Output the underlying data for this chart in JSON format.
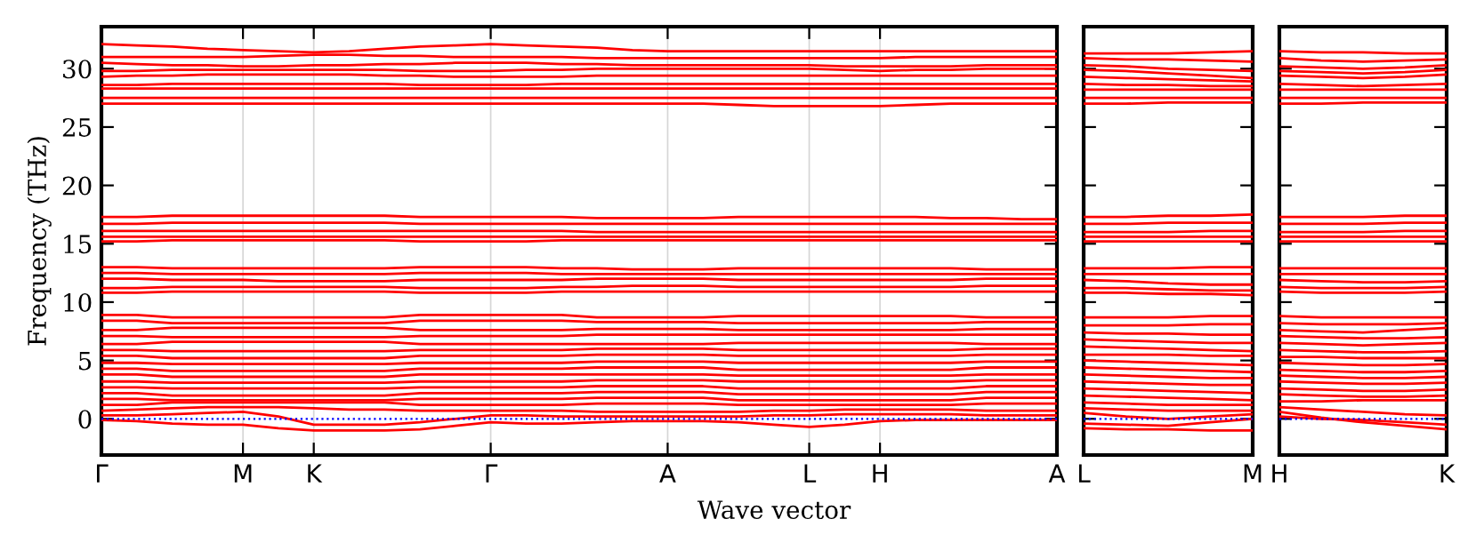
{
  "chart_data": [
    {
      "type": "line",
      "ylabel": "Frequency (THz)",
      "xlabel": "Wave vector",
      "categories": [
        "Γ",
        null,
        null,
        null,
        "M",
        null,
        "K",
        null,
        null,
        null,
        null,
        "Γ",
        null,
        null,
        null,
        null,
        "A",
        null,
        null,
        null,
        "L",
        null,
        "H",
        null,
        null,
        null,
        null,
        "A"
      ],
      "ylim": [
        -3.1,
        33.6
      ],
      "yticks": [
        0,
        5,
        10,
        15,
        20,
        25,
        30
      ],
      "grid": "x",
      "marker": "none",
      "line_style": "solid",
      "ref_lines": [
        {
          "axis": "y",
          "value": 0,
          "color": "#0000ff",
          "line_style": "dotted"
        }
      ],
      "series": [
        {
          "color": "#ff0000",
          "values": [
            32.1,
            32.0,
            31.9,
            31.7,
            31.6,
            31.5,
            31.4,
            31.5,
            31.7,
            31.9,
            32.0,
            32.1,
            32.0,
            31.9,
            31.8,
            31.6,
            31.5,
            31.5,
            31.5,
            31.5,
            31.5,
            31.5,
            31.5,
            31.5,
            31.5,
            31.5,
            31.5,
            31.5
          ]
        },
        {
          "color": "#ff0000",
          "values": [
            31.0,
            31.0,
            31.0,
            31.0,
            31.0,
            31.1,
            31.2,
            31.2,
            31.1,
            31.1,
            31.0,
            31.0,
            31.0,
            31.0,
            30.9,
            30.9,
            30.9,
            30.9,
            30.9,
            30.9,
            30.9,
            30.9,
            30.9,
            31.0,
            31.0,
            31.0,
            31.0,
            31.0
          ]
        },
        {
          "color": "#ff0000",
          "values": [
            30.5,
            30.4,
            30.3,
            30.3,
            30.2,
            30.2,
            30.3,
            30.3,
            30.4,
            30.4,
            30.5,
            30.5,
            30.5,
            30.4,
            30.4,
            30.3,
            30.3,
            30.3,
            30.3,
            30.3,
            30.3,
            30.2,
            30.2,
            30.2,
            30.2,
            30.3,
            30.3,
            30.3
          ]
        },
        {
          "color": "#ff0000",
          "values": [
            29.8,
            29.8,
            29.9,
            29.9,
            29.9,
            29.9,
            29.9,
            29.9,
            29.9,
            29.8,
            29.8,
            29.8,
            29.9,
            29.9,
            30.0,
            30.0,
            30.0,
            30.0,
            30.0,
            30.0,
            30.0,
            29.9,
            29.8,
            29.9,
            29.9,
            30.0,
            30.0,
            30.0
          ]
        },
        {
          "color": "#ff0000",
          "values": [
            29.3,
            29.4,
            29.4,
            29.5,
            29.5,
            29.5,
            29.5,
            29.5,
            29.4,
            29.4,
            29.3,
            29.3,
            29.3,
            29.3,
            29.4,
            29.4,
            29.4,
            29.4,
            29.4,
            29.4,
            29.4,
            29.4,
            29.4,
            29.4,
            29.4,
            29.4,
            29.4,
            29.4
          ]
        },
        {
          "color": "#ff0000",
          "values": [
            28.6,
            28.6,
            28.7,
            28.7,
            28.7,
            28.7,
            28.7,
            28.7,
            28.7,
            28.6,
            28.6,
            28.6,
            28.6,
            28.7,
            28.7,
            28.7,
            28.7,
            28.7,
            28.7,
            28.7,
            28.7,
            28.7,
            28.7,
            28.7,
            28.7,
            28.7,
            28.7,
            28.7
          ]
        },
        {
          "color": "#ff0000",
          "values": [
            28.3,
            28.3,
            28.3,
            28.3,
            28.3,
            28.3,
            28.3,
            28.3,
            28.3,
            28.3,
            28.3,
            28.3,
            28.3,
            28.3,
            28.3,
            28.3,
            28.3,
            28.3,
            28.3,
            28.3,
            28.3,
            28.3,
            28.3,
            28.3,
            28.3,
            28.3,
            28.3,
            28.3
          ]
        },
        {
          "color": "#ff0000",
          "values": [
            27.5,
            27.5,
            27.5,
            27.5,
            27.5,
            27.5,
            27.5,
            27.5,
            27.5,
            27.5,
            27.5,
            27.5,
            27.5,
            27.5,
            27.5,
            27.5,
            27.5,
            27.5,
            27.5,
            27.5,
            27.5,
            27.5,
            27.5,
            27.5,
            27.5,
            27.5,
            27.5,
            27.5
          ]
        },
        {
          "color": "#ff0000",
          "values": [
            27.0,
            27.0,
            27.0,
            27.0,
            27.0,
            27.0,
            27.0,
            27.0,
            27.0,
            27.0,
            27.0,
            27.0,
            27.0,
            27.0,
            27.0,
            27.0,
            27.0,
            27.0,
            26.9,
            26.8,
            26.8,
            26.8,
            26.8,
            26.9,
            27.0,
            27.0,
            27.0,
            27.0
          ]
        },
        {
          "color": "#ff0000",
          "values": [
            17.3,
            17.3,
            17.4,
            17.4,
            17.4,
            17.4,
            17.4,
            17.4,
            17.4,
            17.3,
            17.3,
            17.3,
            17.3,
            17.3,
            17.2,
            17.2,
            17.2,
            17.2,
            17.3,
            17.3,
            17.3,
            17.3,
            17.3,
            17.3,
            17.2,
            17.2,
            17.1,
            17.1
          ]
        },
        {
          "color": "#ff0000",
          "values": [
            16.7,
            16.7,
            16.8,
            16.8,
            16.8,
            16.8,
            16.8,
            16.8,
            16.8,
            16.7,
            16.7,
            16.7,
            16.7,
            16.7,
            16.7,
            16.7,
            16.7,
            16.7,
            16.7,
            16.7,
            16.7,
            16.7,
            16.7,
            16.7,
            16.7,
            16.7,
            16.7,
            16.7
          ]
        },
        {
          "color": "#ff0000",
          "values": [
            16.1,
            16.1,
            16.1,
            16.1,
            16.1,
            16.1,
            16.1,
            16.1,
            16.1,
            16.1,
            16.1,
            16.1,
            16.1,
            16.1,
            16.0,
            16.0,
            16.0,
            16.0,
            16.0,
            16.0,
            16.0,
            16.0,
            16.0,
            16.0,
            16.0,
            16.0,
            16.0,
            16.0
          ]
        },
        {
          "color": "#ff0000",
          "values": [
            15.6,
            15.6,
            15.6,
            15.6,
            15.6,
            15.6,
            15.6,
            15.6,
            15.6,
            15.6,
            15.6,
            15.6,
            15.6,
            15.6,
            15.6,
            15.6,
            15.6,
            15.6,
            15.6,
            15.6,
            15.6,
            15.6,
            15.6,
            15.6,
            15.6,
            15.6,
            15.6,
            15.6
          ]
        },
        {
          "color": "#ff0000",
          "values": [
            15.2,
            15.2,
            15.3,
            15.3,
            15.3,
            15.3,
            15.3,
            15.3,
            15.3,
            15.2,
            15.2,
            15.2,
            15.2,
            15.3,
            15.3,
            15.3,
            15.3,
            15.3,
            15.3,
            15.3,
            15.3,
            15.3,
            15.3,
            15.3,
            15.3,
            15.3,
            15.3,
            15.3
          ]
        },
        {
          "color": "#ff0000",
          "values": [
            13.0,
            13.0,
            12.9,
            12.9,
            12.9,
            12.9,
            12.9,
            12.9,
            12.9,
            13.0,
            13.0,
            13.0,
            13.0,
            12.9,
            12.9,
            12.8,
            12.8,
            12.8,
            12.9,
            12.9,
            12.9,
            12.9,
            12.9,
            12.9,
            12.9,
            12.8,
            12.8,
            12.8
          ]
        },
        {
          "color": "#ff0000",
          "values": [
            12.5,
            12.5,
            12.4,
            12.4,
            12.4,
            12.4,
            12.4,
            12.4,
            12.4,
            12.5,
            12.5,
            12.5,
            12.5,
            12.4,
            12.4,
            12.4,
            12.4,
            12.4,
            12.4,
            12.4,
            12.4,
            12.4,
            12.4,
            12.4,
            12.4,
            12.4,
            12.4,
            12.4
          ]
        },
        {
          "color": "#ff0000",
          "values": [
            12.0,
            12.0,
            11.9,
            11.9,
            11.9,
            11.8,
            11.8,
            11.8,
            11.8,
            11.9,
            11.9,
            11.9,
            11.9,
            11.9,
            12.0,
            12.0,
            12.0,
            12.0,
            11.9,
            11.9,
            11.9,
            11.9,
            11.9,
            11.9,
            11.9,
            12.0,
            12.0,
            12.0
          ]
        },
        {
          "color": "#ff0000",
          "values": [
            11.2,
            11.2,
            11.3,
            11.3,
            11.3,
            11.3,
            11.3,
            11.3,
            11.3,
            11.2,
            11.2,
            11.2,
            11.2,
            11.3,
            11.3,
            11.4,
            11.4,
            11.4,
            11.3,
            11.3,
            11.3,
            11.3,
            11.3,
            11.3,
            11.3,
            11.4,
            11.4,
            11.4
          ]
        },
        {
          "color": "#ff0000",
          "values": [
            10.8,
            10.8,
            10.9,
            10.9,
            10.9,
            10.9,
            10.9,
            10.9,
            10.9,
            10.8,
            10.8,
            10.8,
            10.8,
            10.9,
            10.9,
            10.9,
            10.9,
            10.9,
            10.9,
            10.9,
            10.9,
            10.9,
            10.9,
            10.9,
            10.9,
            10.9,
            10.9,
            10.9
          ]
        },
        {
          "color": "#ff0000",
          "values": [
            8.9,
            8.9,
            8.7,
            8.7,
            8.7,
            8.7,
            8.7,
            8.7,
            8.7,
            8.9,
            8.9,
            8.9,
            8.9,
            8.9,
            8.7,
            8.7,
            8.7,
            8.7,
            8.8,
            8.8,
            8.8,
            8.8,
            8.8,
            8.8,
            8.8,
            8.7,
            8.7,
            8.7
          ]
        },
        {
          "color": "#ff0000",
          "values": [
            8.4,
            8.4,
            8.2,
            8.2,
            8.2,
            8.2,
            8.2,
            8.2,
            8.2,
            8.4,
            8.4,
            8.4,
            8.4,
            8.4,
            8.3,
            8.3,
            8.3,
            8.3,
            8.2,
            8.2,
            8.2,
            8.2,
            8.2,
            8.2,
            8.2,
            8.3,
            8.3,
            8.3
          ]
        },
        {
          "color": "#ff0000",
          "values": [
            7.6,
            7.6,
            7.8,
            7.8,
            7.8,
            7.8,
            7.8,
            7.8,
            7.8,
            7.6,
            7.6,
            7.6,
            7.6,
            7.6,
            7.7,
            7.7,
            7.7,
            7.7,
            7.6,
            7.6,
            7.6,
            7.6,
            7.6,
            7.6,
            7.6,
            7.7,
            7.7,
            7.7
          ]
        },
        {
          "color": "#ff0000",
          "values": [
            7.1,
            7.1,
            7.0,
            7.0,
            7.0,
            7.0,
            7.0,
            7.0,
            7.0,
            7.1,
            7.1,
            7.1,
            7.1,
            7.1,
            7.2,
            7.2,
            7.2,
            7.2,
            7.2,
            7.2,
            7.2,
            7.2,
            7.2,
            7.2,
            7.2,
            7.2,
            7.2,
            7.2
          ]
        },
        {
          "color": "#ff0000",
          "values": [
            6.4,
            6.4,
            6.6,
            6.6,
            6.6,
            6.6,
            6.6,
            6.6,
            6.6,
            6.4,
            6.4,
            6.4,
            6.4,
            6.4,
            6.4,
            6.4,
            6.4,
            6.4,
            6.5,
            6.5,
            6.5,
            6.5,
            6.5,
            6.5,
            6.5,
            6.4,
            6.4,
            6.4
          ]
        },
        {
          "color": "#ff0000",
          "values": [
            5.9,
            5.9,
            5.8,
            5.8,
            5.8,
            5.8,
            5.8,
            5.8,
            5.8,
            5.9,
            5.9,
            5.9,
            5.9,
            5.9,
            6.0,
            6.0,
            6.0,
            6.0,
            5.9,
            5.9,
            5.9,
            5.9,
            5.9,
            5.9,
            5.9,
            6.0,
            6.0,
            6.0
          ]
        },
        {
          "color": "#ff0000",
          "values": [
            5.4,
            5.4,
            5.2,
            5.2,
            5.2,
            5.2,
            5.2,
            5.2,
            5.2,
            5.4,
            5.4,
            5.4,
            5.4,
            5.4,
            5.5,
            5.5,
            5.5,
            5.5,
            5.4,
            5.4,
            5.4,
            5.4,
            5.4,
            5.4,
            5.4,
            5.5,
            5.5,
            5.5
          ]
        },
        {
          "color": "#ff0000",
          "values": [
            4.8,
            4.8,
            4.7,
            4.7,
            4.7,
            4.7,
            4.7,
            4.7,
            4.7,
            4.8,
            4.8,
            4.8,
            4.8,
            4.8,
            4.9,
            4.9,
            4.9,
            4.9,
            4.8,
            4.8,
            4.8,
            4.8,
            4.8,
            4.8,
            4.8,
            4.9,
            4.9,
            4.9
          ]
        },
        {
          "color": "#ff0000",
          "values": [
            4.3,
            4.3,
            4.1,
            4.1,
            4.1,
            4.1,
            4.1,
            4.1,
            4.1,
            4.3,
            4.3,
            4.3,
            4.3,
            4.3,
            4.4,
            4.4,
            4.4,
            4.4,
            4.2,
            4.2,
            4.2,
            4.2,
            4.2,
            4.2,
            4.2,
            4.4,
            4.4,
            4.4
          ]
        },
        {
          "color": "#ff0000",
          "values": [
            3.8,
            3.8,
            3.6,
            3.6,
            3.6,
            3.6,
            3.6,
            3.6,
            3.6,
            3.8,
            3.8,
            3.8,
            3.8,
            3.8,
            3.8,
            3.8,
            3.8,
            3.8,
            3.7,
            3.7,
            3.7,
            3.7,
            3.7,
            3.7,
            3.7,
            3.8,
            3.8,
            3.8
          ]
        },
        {
          "color": "#ff0000",
          "values": [
            3.2,
            3.2,
            3.1,
            3.1,
            3.1,
            3.1,
            3.1,
            3.1,
            3.1,
            3.2,
            3.2,
            3.2,
            3.2,
            3.2,
            3.3,
            3.3,
            3.3,
            3.3,
            3.2,
            3.2,
            3.2,
            3.2,
            3.2,
            3.2,
            3.2,
            3.3,
            3.3,
            3.3
          ]
        },
        {
          "color": "#ff0000",
          "values": [
            2.7,
            2.7,
            2.6,
            2.6,
            2.6,
            2.6,
            2.6,
            2.6,
            2.6,
            2.7,
            2.7,
            2.7,
            2.7,
            2.7,
            2.8,
            2.8,
            2.8,
            2.8,
            2.6,
            2.6,
            2.6,
            2.6,
            2.6,
            2.6,
            2.6,
            2.8,
            2.8,
            2.8
          ]
        },
        {
          "color": "#ff0000",
          "values": [
            2.2,
            2.2,
            2.0,
            2.0,
            2.0,
            2.0,
            2.0,
            2.0,
            2.0,
            2.2,
            2.2,
            2.2,
            2.2,
            2.2,
            2.3,
            2.3,
            2.3,
            2.3,
            2.1,
            2.1,
            2.1,
            2.1,
            2.1,
            2.1,
            2.1,
            2.3,
            2.3,
            2.3
          ]
        },
        {
          "color": "#ff0000",
          "values": [
            1.7,
            1.7,
            1.6,
            1.6,
            1.6,
            1.6,
            1.6,
            1.6,
            1.6,
            1.7,
            1.7,
            1.7,
            1.7,
            1.7,
            1.8,
            1.8,
            1.8,
            1.8,
            1.6,
            1.6,
            1.6,
            1.6,
            1.6,
            1.6,
            1.6,
            1.8,
            1.8,
            1.8
          ]
        },
        {
          "color": "#ff0000",
          "values": [
            1.2,
            1.2,
            1.4,
            1.4,
            1.4,
            1.4,
            1.4,
            1.4,
            1.4,
            1.2,
            1.2,
            1.2,
            1.2,
            1.2,
            1.3,
            1.3,
            1.3,
            1.3,
            1.2,
            1.2,
            1.2,
            1.2,
            1.2,
            1.2,
            1.2,
            1.3,
            1.3,
            1.3
          ]
        },
        {
          "color": "#ff0000",
          "values": [
            0.7,
            0.8,
            0.9,
            1.0,
            1.0,
            1.0,
            0.9,
            0.8,
            0.8,
            0.7,
            0.7,
            0.7,
            0.7,
            0.7,
            0.6,
            0.6,
            0.6,
            0.6,
            0.6,
            0.7,
            0.7,
            0.8,
            0.8,
            0.8,
            0.8,
            0.7,
            0.7,
            0.7
          ]
        },
        {
          "color": "#ff0000",
          "values": [
            0.3,
            0.3,
            0.4,
            0.5,
            0.6,
            0.2,
            -0.5,
            -0.5,
            -0.5,
            -0.3,
            0.0,
            0.3,
            0.3,
            0.2,
            0.2,
            0.2,
            0.2,
            0.2,
            0.2,
            0.3,
            0.3,
            0.4,
            0.4,
            0.4,
            0.4,
            0.3,
            0.3,
            0.3
          ]
        },
        {
          "color": "#ff0000",
          "values": [
            -0.1,
            -0.2,
            -0.4,
            -0.5,
            -0.5,
            -0.8,
            -1.0,
            -1.0,
            -1.0,
            -0.9,
            -0.6,
            -0.3,
            -0.4,
            -0.4,
            -0.3,
            -0.2,
            -0.2,
            -0.2,
            -0.3,
            -0.5,
            -0.7,
            -0.5,
            -0.2,
            -0.1,
            -0.1,
            -0.1,
            -0.1,
            -0.1
          ]
        }
      ]
    },
    {
      "type": "line",
      "categories": [
        "L",
        null,
        null,
        null,
        "M"
      ],
      "ylim": [
        -3.1,
        33.6
      ],
      "yticks": [
        0,
        5,
        10,
        15,
        20,
        25,
        30
      ],
      "tick_labels": "x",
      "marker": "none",
      "line_style": "solid",
      "ref_lines": [
        {
          "axis": "y",
          "value": 0,
          "color": "#0000ff",
          "line_style": "dotted"
        }
      ],
      "series": [
        {
          "color": "#ff0000",
          "values": [
            31.3,
            31.3,
            31.3,
            31.4,
            31.5
          ]
        },
        {
          "color": "#ff0000",
          "values": [
            30.9,
            30.8,
            30.8,
            30.7,
            30.6
          ]
        },
        {
          "color": "#ff0000",
          "values": [
            30.3,
            30.2,
            30.0,
            29.9,
            29.8
          ]
        },
        {
          "color": "#ff0000",
          "values": [
            29.9,
            29.8,
            29.6,
            29.4,
            29.2
          ]
        },
        {
          "color": "#ff0000",
          "values": [
            29.3,
            29.2,
            29.1,
            29.0,
            28.9
          ]
        },
        {
          "color": "#ff0000",
          "values": [
            28.7,
            28.6,
            28.6,
            28.5,
            28.5
          ]
        },
        {
          "color": "#ff0000",
          "values": [
            28.2,
            28.2,
            28.2,
            28.2,
            28.2
          ]
        },
        {
          "color": "#ff0000",
          "values": [
            27.5,
            27.5,
            27.5,
            27.5,
            27.5
          ]
        },
        {
          "color": "#ff0000",
          "values": [
            27.0,
            27.0,
            27.1,
            27.1,
            27.1
          ]
        },
        {
          "color": "#ff0000",
          "values": [
            17.3,
            17.3,
            17.4,
            17.4,
            17.5
          ]
        },
        {
          "color": "#ff0000",
          "values": [
            16.7,
            16.7,
            16.8,
            16.8,
            16.8
          ]
        },
        {
          "color": "#ff0000",
          "values": [
            16.0,
            16.0,
            16.0,
            16.1,
            16.1
          ]
        },
        {
          "color": "#ff0000",
          "values": [
            15.6,
            15.6,
            15.6,
            15.6,
            15.6
          ]
        },
        {
          "color": "#ff0000",
          "values": [
            15.2,
            15.2,
            15.2,
            15.2,
            15.2
          ]
        },
        {
          "color": "#ff0000",
          "values": [
            12.9,
            12.9,
            12.9,
            13.0,
            13.0
          ]
        },
        {
          "color": "#ff0000",
          "values": [
            12.4,
            12.4,
            12.4,
            12.4,
            12.4
          ]
        },
        {
          "color": "#ff0000",
          "values": [
            11.9,
            11.8,
            11.6,
            11.5,
            11.5
          ]
        },
        {
          "color": "#ff0000",
          "values": [
            11.2,
            11.2,
            11.1,
            11.0,
            11.0
          ]
        },
        {
          "color": "#ff0000",
          "values": [
            10.8,
            10.8,
            10.7,
            10.7,
            10.6
          ]
        },
        {
          "color": "#ff0000",
          "values": [
            8.7,
            8.7,
            8.7,
            8.8,
            8.8
          ]
        },
        {
          "color": "#ff0000",
          "values": [
            8.0,
            8.0,
            8.0,
            8.1,
            8.1
          ]
        },
        {
          "color": "#ff0000",
          "values": [
            7.4,
            7.3,
            7.3,
            7.2,
            7.2
          ]
        },
        {
          "color": "#ff0000",
          "values": [
            6.8,
            6.7,
            6.6,
            6.5,
            6.5
          ]
        },
        {
          "color": "#ff0000",
          "values": [
            6.2,
            6.1,
            6.0,
            5.9,
            5.8
          ]
        },
        {
          "color": "#ff0000",
          "values": [
            5.5,
            5.5,
            5.5,
            5.4,
            5.4
          ]
        },
        {
          "color": "#ff0000",
          "values": [
            5.0,
            4.9,
            4.8,
            4.7,
            4.6
          ]
        },
        {
          "color": "#ff0000",
          "values": [
            4.4,
            4.3,
            4.2,
            4.1,
            4.0
          ]
        },
        {
          "color": "#ff0000",
          "values": [
            3.8,
            3.7,
            3.6,
            3.5,
            3.5
          ]
        },
        {
          "color": "#ff0000",
          "values": [
            3.2,
            3.1,
            3.0,
            2.9,
            2.9
          ]
        },
        {
          "color": "#ff0000",
          "values": [
            2.6,
            2.5,
            2.4,
            2.3,
            2.2
          ]
        },
        {
          "color": "#ff0000",
          "values": [
            2.0,
            1.9,
            1.8,
            1.7,
            1.6
          ]
        },
        {
          "color": "#ff0000",
          "values": [
            1.4,
            1.3,
            1.2,
            1.2,
            1.2
          ]
        },
        {
          "color": "#ff0000",
          "values": [
            0.9,
            0.8,
            0.7,
            0.7,
            0.7
          ]
        },
        {
          "color": "#ff0000",
          "values": [
            0.5,
            0.2,
            0.0,
            0.2,
            0.4
          ]
        },
        {
          "color": "#ff0000",
          "values": [
            -0.4,
            -0.5,
            -0.6,
            -0.3,
            0.0
          ]
        },
        {
          "color": "#ff0000",
          "values": [
            -0.8,
            -0.9,
            -0.9,
            -1.0,
            -1.0
          ]
        }
      ]
    },
    {
      "type": "line",
      "categories": [
        "H",
        null,
        null,
        null,
        "K"
      ],
      "ylim": [
        -3.1,
        33.6
      ],
      "yticks": [
        0,
        5,
        10,
        15,
        20,
        25,
        30
      ],
      "tick_labels": "x",
      "marker": "none",
      "line_style": "solid",
      "ref_lines": [
        {
          "axis": "y",
          "value": 0,
          "color": "#0000ff",
          "line_style": "dotted"
        }
      ],
      "series": [
        {
          "color": "#ff0000",
          "values": [
            31.5,
            31.4,
            31.4,
            31.3,
            31.3
          ]
        },
        {
          "color": "#ff0000",
          "values": [
            30.9,
            30.7,
            30.6,
            30.7,
            30.8
          ]
        },
        {
          "color": "#ff0000",
          "values": [
            30.2,
            30.1,
            30.0,
            30.1,
            30.3
          ]
        },
        {
          "color": "#ff0000",
          "values": [
            29.8,
            29.7,
            29.6,
            29.7,
            29.9
          ]
        },
        {
          "color": "#ff0000",
          "values": [
            29.4,
            29.3,
            29.2,
            29.3,
            29.5
          ]
        },
        {
          "color": "#ff0000",
          "values": [
            28.7,
            28.6,
            28.5,
            28.6,
            28.7
          ]
        },
        {
          "color": "#ff0000",
          "values": [
            28.2,
            28.2,
            28.2,
            28.2,
            28.2
          ]
        },
        {
          "color": "#ff0000",
          "values": [
            27.5,
            27.5,
            27.5,
            27.5,
            27.5
          ]
        },
        {
          "color": "#ff0000",
          "values": [
            27.0,
            27.0,
            27.1,
            27.1,
            27.1
          ]
        },
        {
          "color": "#ff0000",
          "values": [
            17.3,
            17.3,
            17.3,
            17.4,
            17.4
          ]
        },
        {
          "color": "#ff0000",
          "values": [
            16.7,
            16.7,
            16.7,
            16.8,
            16.8
          ]
        },
        {
          "color": "#ff0000",
          "values": [
            16.0,
            16.0,
            16.0,
            16.1,
            16.1
          ]
        },
        {
          "color": "#ff0000",
          "values": [
            15.6,
            15.6,
            15.6,
            15.6,
            15.6
          ]
        },
        {
          "color": "#ff0000",
          "values": [
            15.2,
            15.2,
            15.2,
            15.2,
            15.2
          ]
        },
        {
          "color": "#ff0000",
          "values": [
            12.9,
            12.9,
            12.9,
            12.9,
            12.9
          ]
        },
        {
          "color": "#ff0000",
          "values": [
            12.4,
            12.4,
            12.4,
            12.4,
            12.4
          ]
        },
        {
          "color": "#ff0000",
          "values": [
            11.9,
            11.8,
            11.7,
            11.7,
            11.8
          ]
        },
        {
          "color": "#ff0000",
          "values": [
            11.3,
            11.2,
            11.2,
            11.2,
            11.3
          ]
        },
        {
          "color": "#ff0000",
          "values": [
            10.9,
            10.8,
            10.8,
            10.8,
            10.9
          ]
        },
        {
          "color": "#ff0000",
          "values": [
            8.8,
            8.7,
            8.7,
            8.7,
            8.7
          ]
        },
        {
          "color": "#ff0000",
          "values": [
            8.2,
            8.1,
            8.1,
            8.1,
            8.2
          ]
        },
        {
          "color": "#ff0000",
          "values": [
            7.6,
            7.5,
            7.4,
            7.6,
            7.8
          ]
        },
        {
          "color": "#ff0000",
          "values": [
            7.1,
            7.0,
            6.9,
            6.9,
            7.0
          ]
        },
        {
          "color": "#ff0000",
          "values": [
            6.5,
            6.4,
            6.3,
            6.4,
            6.5
          ]
        },
        {
          "color": "#ff0000",
          "values": [
            5.9,
            5.8,
            5.7,
            5.7,
            5.8
          ]
        },
        {
          "color": "#ff0000",
          "values": [
            5.3,
            5.3,
            5.2,
            5.2,
            5.2
          ]
        },
        {
          "color": "#ff0000",
          "values": [
            4.8,
            4.7,
            4.6,
            4.6,
            4.7
          ]
        },
        {
          "color": "#ff0000",
          "values": [
            4.2,
            4.1,
            4.0,
            4.0,
            4.1
          ]
        },
        {
          "color": "#ff0000",
          "values": [
            3.7,
            3.6,
            3.5,
            3.5,
            3.6
          ]
        },
        {
          "color": "#ff0000",
          "values": [
            3.2,
            3.1,
            3.0,
            3.0,
            3.1
          ]
        },
        {
          "color": "#ff0000",
          "values": [
            2.6,
            2.5,
            2.4,
            2.4,
            2.5
          ]
        },
        {
          "color": "#ff0000",
          "values": [
            2.1,
            2.0,
            1.9,
            1.9,
            2.0
          ]
        },
        {
          "color": "#ff0000",
          "values": [
            1.5,
            1.5,
            1.6,
            1.6,
            1.6
          ]
        },
        {
          "color": "#ff0000",
          "values": [
            1.0,
            0.8,
            0.6,
            0.4,
            0.3
          ]
        },
        {
          "color": "#ff0000",
          "values": [
            0.6,
            0.1,
            -0.3,
            -0.6,
            -0.9
          ]
        },
        {
          "color": "#ff0000",
          "values": [
            0.2,
            0.0,
            -0.1,
            -0.3,
            -0.5
          ]
        }
      ]
    }
  ]
}
